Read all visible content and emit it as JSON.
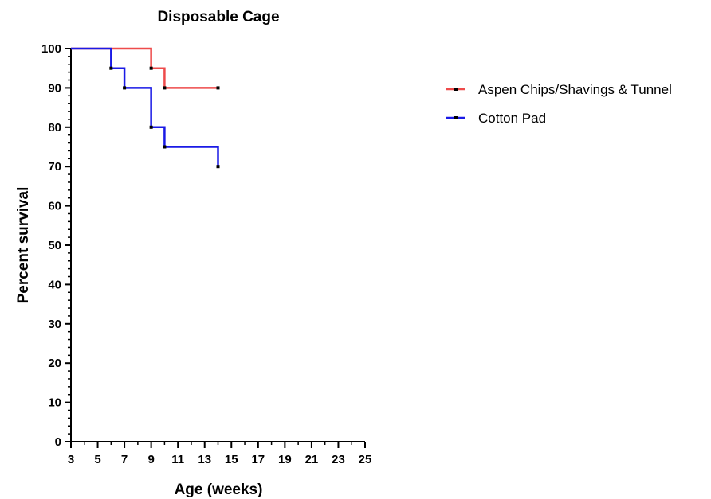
{
  "chart_data": {
    "type": "line",
    "step": true,
    "title": "Disposable Cage",
    "xlabel": "Age (weeks)",
    "ylabel": "Percent survival",
    "xlim": [
      3,
      25
    ],
    "ylim": [
      0,
      100
    ],
    "x_ticks": [
      3,
      5,
      7,
      9,
      11,
      13,
      15,
      17,
      19,
      21,
      23,
      25
    ],
    "y_ticks": [
      0,
      10,
      20,
      30,
      40,
      50,
      60,
      70,
      80,
      90,
      100
    ],
    "legend_position": "right",
    "series": [
      {
        "name": "Aspen Chips/Shavings & Tunnel",
        "color": "#ee4b4b",
        "x": [
          3,
          9,
          10,
          14
        ],
        "y": [
          100,
          95,
          90,
          90
        ],
        "censor_points": [
          [
            9,
            95
          ],
          [
            10,
            90
          ],
          [
            14,
            90
          ]
        ]
      },
      {
        "name": "Cotton Pad",
        "color": "#1a1ae6",
        "x": [
          3,
          6,
          7,
          9,
          10,
          14
        ],
        "y": [
          100,
          95,
          90,
          80,
          75,
          70
        ],
        "censor_points": [
          [
            6,
            95
          ],
          [
            7,
            90
          ],
          [
            9,
            80
          ],
          [
            10,
            75
          ],
          [
            14,
            70
          ]
        ]
      }
    ]
  }
}
